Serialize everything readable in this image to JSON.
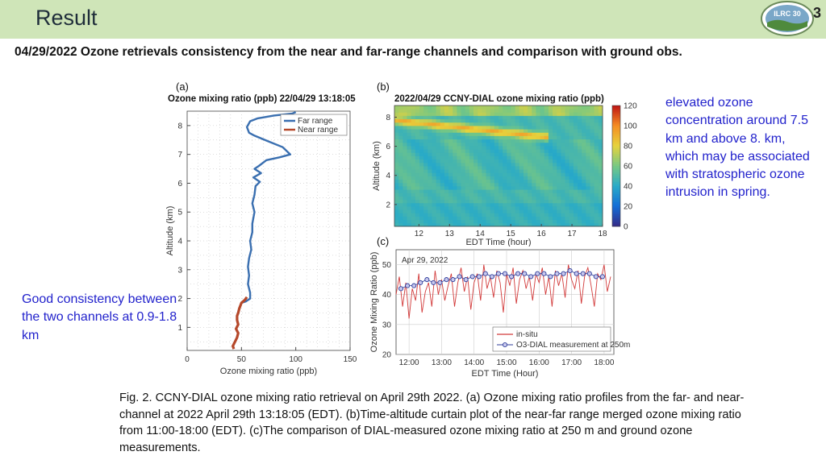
{
  "header": {
    "title": "Result",
    "slide_number": "3",
    "logo_text": "ILRC 30"
  },
  "subtitle": "04/29/2022 Ozone retrievals consistency from the near and far-range channels and comparison with ground obs.",
  "notes": {
    "right": "elevated ozone concentration around 7.5 km and above 8. km, which may be associated with stratospheric ozone intrusion in spring.",
    "left": "Good consistency between the two channels at 0.9-1.8 km"
  },
  "caption": "Fig. 2. CCNY-DIAL ozone mixing ratio retrieval on April 29th 2022. (a) Ozone mixing ratio profiles from the far- and near-channel at 2022 April 29th 13:18:05 (EDT). (b)Time-altitude curtain plot of the near-far range merged ozone mixing ratio from 11:00-18:00 (EDT). (c)The comparison of DIAL-measured ozone mixing ratio at 250 m and ground ozone measurements.",
  "colors": {
    "header_bg": "#cfe5b8",
    "note_text": "#2222cc",
    "far_range": "#3a6fb0",
    "near_range": "#b5482a",
    "insitu": "#d23a3a",
    "dial_marker": "#2f3e9a"
  },
  "chart_data": [
    {
      "panel": "(a)",
      "type": "line",
      "title": "Ozone mixing ratio (ppb) 22/04/29 13:18:05",
      "xlabel": "Ozone mixing ratio (ppb)",
      "ylabel": "Altitude (km)",
      "xlim": [
        0,
        150
      ],
      "ylim": [
        0.2,
        8.5
      ],
      "xticks": [
        0,
        50,
        100,
        150
      ],
      "yticks": [
        1,
        2,
        3,
        4,
        5,
        6,
        7,
        8
      ],
      "grid": true,
      "legend_position": "top-right",
      "series": [
        {
          "name": "Far range",
          "color": "#3a6fb0",
          "points": [
            [
              50,
              1.85
            ],
            [
              54,
              1.9
            ],
            [
              58,
              2.0
            ],
            [
              58,
              2.2
            ],
            [
              56,
              2.5
            ],
            [
              57,
              2.8
            ],
            [
              56,
              3.1
            ],
            [
              57,
              3.4
            ],
            [
              59,
              3.7
            ],
            [
              58,
              4.0
            ],
            [
              60,
              4.3
            ],
            [
              60,
              4.6
            ],
            [
              62,
              5.0
            ],
            [
              60,
              5.3
            ],
            [
              62,
              5.6
            ],
            [
              63,
              5.9
            ],
            [
              67,
              6.05
            ],
            [
              61,
              6.2
            ],
            [
              68,
              6.35
            ],
            [
              62,
              6.5
            ],
            [
              66,
              6.6
            ],
            [
              73,
              6.8
            ],
            [
              85,
              6.9
            ],
            [
              95,
              7.0
            ],
            [
              88,
              7.25
            ],
            [
              75,
              7.45
            ],
            [
              62,
              7.65
            ],
            [
              57,
              7.75
            ],
            [
              55,
              7.95
            ],
            [
              58,
              8.15
            ],
            [
              65,
              8.25
            ],
            [
              80,
              8.35
            ],
            [
              97,
              8.42
            ],
            [
              100,
              8.47
            ]
          ]
        },
        {
          "name": "Near range",
          "color": "#b5482a",
          "points": [
            [
              43,
              0.25
            ],
            [
              42,
              0.35
            ],
            [
              44,
              0.5
            ],
            [
              46,
              0.65
            ],
            [
              47,
              0.8
            ],
            [
              45,
              0.95
            ],
            [
              47,
              1.1
            ],
            [
              46,
              1.25
            ],
            [
              46,
              1.4
            ],
            [
              47,
              1.5
            ],
            [
              48,
              1.65
            ],
            [
              49,
              1.75
            ],
            [
              50,
              1.85
            ],
            [
              53,
              1.95
            ],
            [
              55,
              2.05
            ]
          ]
        }
      ]
    },
    {
      "panel": "(b)",
      "type": "heatmap",
      "title": "2022/04/29 CCNY-DIAL ozone mixing ratio (ppb)",
      "xlabel": "EDT Time (hour)",
      "ylabel": "Altitude (km)",
      "xlim": [
        11.2,
        18
      ],
      "ylim": [
        0.5,
        8.8
      ],
      "xticks": [
        12,
        13,
        14,
        15,
        16,
        17,
        18
      ],
      "yticks": [
        2,
        4,
        6,
        8
      ],
      "colorbar_ticks": [
        0,
        20,
        40,
        60,
        80,
        100,
        120
      ],
      "colorbar_range": [
        0,
        120
      ],
      "features": [
        {
          "name": "elevated ozone band",
          "from": [
            11.2,
            7.8
          ],
          "to": [
            15.5,
            6.8
          ],
          "value": 90
        },
        {
          "name": "upper enhancement",
          "altitude_km_above": 8.0,
          "value": 70
        },
        {
          "name": "boundary layer",
          "altitude_km_below": 2.0,
          "value": 45
        }
      ]
    },
    {
      "panel": "(c)",
      "type": "line",
      "annotation": "Apr 29, 2022",
      "xlabel": "EDT Time (Hour)",
      "ylabel": "Ozone Mixing Ratio (ppb)",
      "xlim": [
        11.6,
        18.3
      ],
      "ylim": [
        20,
        55
      ],
      "xticks": [
        "12:00",
        "13:00",
        "14:00",
        "15:00",
        "16:00",
        "17:00",
        "18:00"
      ],
      "yticks": [
        20,
        30,
        40,
        50
      ],
      "grid": true,
      "legend_position": "bottom-right",
      "series": [
        {
          "name": "in-situ",
          "color": "#d23a3a",
          "x": [
            11.6,
            11.7,
            11.8,
            11.9,
            12.0,
            12.1,
            12.2,
            12.3,
            12.4,
            12.5,
            12.6,
            12.7,
            12.8,
            12.9,
            13.0,
            13.1,
            13.2,
            13.3,
            13.4,
            13.5,
            13.6,
            13.7,
            13.8,
            13.9,
            14.0,
            14.1,
            14.2,
            14.3,
            14.4,
            14.5,
            14.6,
            14.7,
            14.8,
            14.9,
            15.0,
            15.1,
            15.2,
            15.3,
            15.4,
            15.5,
            15.6,
            15.7,
            15.8,
            15.9,
            16.0,
            16.1,
            16.2,
            16.3,
            16.4,
            16.5,
            16.6,
            16.7,
            16.8,
            16.9,
            17.0,
            17.1,
            17.2,
            17.3,
            17.4,
            17.5,
            17.6,
            17.7,
            17.8,
            17.9,
            18.0,
            18.1,
            18.2
          ],
          "values": [
            40,
            46,
            36,
            44,
            32,
            42,
            38,
            47,
            34,
            41,
            44,
            36,
            48,
            40,
            45,
            38,
            43,
            47,
            36,
            44,
            49,
            41,
            46,
            35,
            44,
            47,
            38,
            50,
            42,
            46,
            39,
            48,
            44,
            34,
            47,
            43,
            49,
            37,
            45,
            48,
            42,
            46,
            38,
            47,
            44,
            49,
            40,
            46,
            36,
            48,
            43,
            47,
            39,
            50,
            45,
            42,
            48,
            37,
            46,
            49,
            43,
            36,
            47,
            45,
            50,
            41,
            46
          ]
        },
        {
          "name": "O3-DIAL measurement at 250m",
          "color": "#2f3e9a",
          "x": [
            11.75,
            11.95,
            12.15,
            12.35,
            12.55,
            12.75,
            12.95,
            13.15,
            13.35,
            13.55,
            13.75,
            13.95,
            14.15,
            14.35,
            14.55,
            14.75,
            14.95,
            15.15,
            15.35,
            15.55,
            15.75,
            15.95,
            16.15,
            16.35,
            16.55,
            16.75,
            16.95,
            17.15,
            17.35,
            17.55,
            17.75,
            17.95
          ],
          "values": [
            42,
            43,
            43,
            44,
            45,
            44,
            44,
            45,
            45,
            46,
            45,
            46,
            46,
            47,
            46,
            47,
            47,
            46,
            47,
            47,
            46,
            47,
            47,
            46,
            47,
            47,
            48,
            47,
            47,
            47,
            46,
            46
          ]
        }
      ]
    }
  ]
}
